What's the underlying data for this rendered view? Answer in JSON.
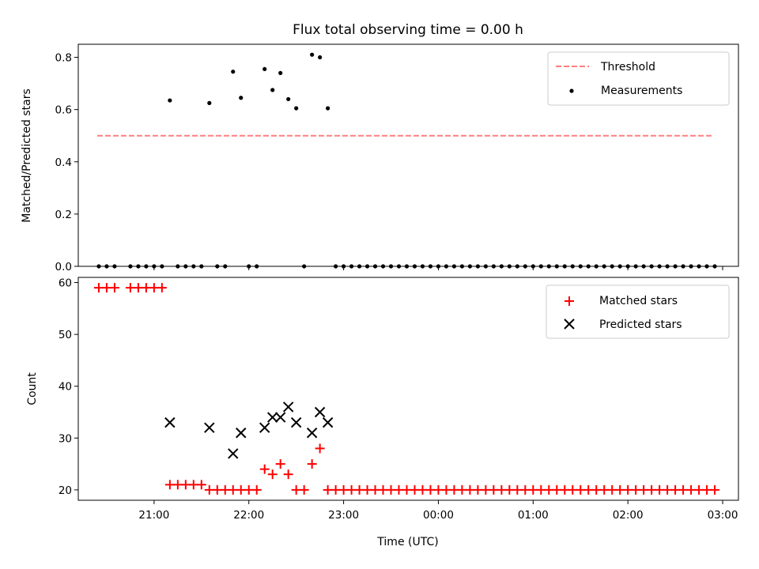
{
  "chart_data": {
    "title": "Flux total observing time = 0.00 h",
    "xlabel": "Time (UTC)",
    "x_ticks": [
      "21:00",
      "22:00",
      "23:00",
      "00:00",
      "01:00",
      "02:00",
      "03:00"
    ],
    "colors": {
      "threshold": "#ff7f7f",
      "measurements": "#000000",
      "matched": "#ff0000",
      "predicted": "#000000"
    },
    "panels": [
      {
        "type": "scatter",
        "ylabel": "Matched/Predicted stars",
        "ylim": [
          0,
          0.85
        ],
        "y_ticks": [
          "0.0",
          "0.2",
          "0.4",
          "0.6",
          "0.8"
        ],
        "legend": {
          "placement": "top-right",
          "entries": [
            "Threshold",
            "Measurements"
          ]
        },
        "series": [
          {
            "name": "Threshold",
            "kind": "dashed-line",
            "points": [
              [
                "20:24",
                0.5
              ],
              [
                "02:54",
                0.5
              ]
            ]
          },
          {
            "name": "Measurements",
            "kind": "points",
            "points": [
              [
                "20:25",
                0
              ],
              [
                "20:30",
                0
              ],
              [
                "20:35",
                0
              ],
              [
                "20:45",
                0
              ],
              [
                "20:50",
                0
              ],
              [
                "20:55",
                0
              ],
              [
                "21:00",
                0
              ],
              [
                "21:05",
                0
              ],
              [
                "21:10",
                0.635
              ],
              [
                "21:15",
                0
              ],
              [
                "21:20",
                0
              ],
              [
                "21:25",
                0
              ],
              [
                "21:30",
                0
              ],
              [
                "21:35",
                0.625
              ],
              [
                "21:40",
                0
              ],
              [
                "21:45",
                0
              ],
              [
                "21:50",
                0.745
              ],
              [
                "21:55",
                0.645
              ],
              [
                "22:00",
                0
              ],
              [
                "22:05",
                0
              ],
              [
                "22:10",
                0.755
              ],
              [
                "22:15",
                0.675
              ],
              [
                "22:20",
                0.74
              ],
              [
                "22:25",
                0.64
              ],
              [
                "22:30",
                0.605
              ],
              [
                "22:35",
                0
              ],
              [
                "22:40",
                0.81
              ],
              [
                "22:45",
                0.8
              ],
              [
                "22:50",
                0.605
              ],
              [
                "22:55",
                0
              ],
              [
                "23:00",
                0
              ],
              [
                "23:05",
                0
              ],
              [
                "23:10",
                0
              ],
              [
                "23:15",
                0
              ],
              [
                "23:20",
                0
              ],
              [
                "23:25",
                0
              ],
              [
                "23:30",
                0
              ],
              [
                "23:35",
                0
              ],
              [
                "23:40",
                0
              ],
              [
                "23:45",
                0
              ],
              [
                "23:50",
                0
              ],
              [
                "23:55",
                0
              ],
              [
                "00:00",
                0
              ],
              [
                "00:05",
                0
              ],
              [
                "00:10",
                0
              ],
              [
                "00:15",
                0
              ],
              [
                "00:20",
                0
              ],
              [
                "00:25",
                0
              ],
              [
                "00:30",
                0
              ],
              [
                "00:35",
                0
              ],
              [
                "00:40",
                0
              ],
              [
                "00:45",
                0
              ],
              [
                "00:50",
                0
              ],
              [
                "00:55",
                0
              ],
              [
                "01:00",
                0
              ],
              [
                "01:05",
                0
              ],
              [
                "01:10",
                0
              ],
              [
                "01:15",
                0
              ],
              [
                "01:20",
                0
              ],
              [
                "01:25",
                0
              ],
              [
                "01:30",
                0
              ],
              [
                "01:35",
                0
              ],
              [
                "01:40",
                0
              ],
              [
                "01:45",
                0
              ],
              [
                "01:50",
                0
              ],
              [
                "01:55",
                0
              ],
              [
                "02:00",
                0
              ],
              [
                "02:05",
                0
              ],
              [
                "02:10",
                0
              ],
              [
                "02:15",
                0
              ],
              [
                "02:20",
                0
              ],
              [
                "02:25",
                0
              ],
              [
                "02:30",
                0
              ],
              [
                "02:35",
                0
              ],
              [
                "02:40",
                0
              ],
              [
                "02:45",
                0
              ],
              [
                "02:50",
                0
              ],
              [
                "02:55",
                0
              ]
            ]
          }
        ]
      },
      {
        "type": "scatter",
        "ylabel": "Count",
        "ylim": [
          18,
          61
        ],
        "y_ticks": [
          "20",
          "30",
          "40",
          "50",
          "60"
        ],
        "legend": {
          "placement": "top-right",
          "entries": [
            "Matched stars",
            "Predicted stars"
          ]
        },
        "series": [
          {
            "name": "Matched stars",
            "kind": "plus",
            "points": [
              [
                "20:25",
                59
              ],
              [
                "20:30",
                59
              ],
              [
                "20:35",
                59
              ],
              [
                "20:45",
                59
              ],
              [
                "20:50",
                59
              ],
              [
                "20:55",
                59
              ],
              [
                "21:00",
                59
              ],
              [
                "21:05",
                59
              ],
              [
                "21:10",
                21
              ],
              [
                "21:15",
                21
              ],
              [
                "21:20",
                21
              ],
              [
                "21:25",
                21
              ],
              [
                "21:30",
                21
              ],
              [
                "21:35",
                20
              ],
              [
                "21:40",
                20
              ],
              [
                "21:45",
                20
              ],
              [
                "21:50",
                20
              ],
              [
                "21:55",
                20
              ],
              [
                "22:00",
                20
              ],
              [
                "22:05",
                20
              ],
              [
                "22:10",
                24
              ],
              [
                "22:15",
                23
              ],
              [
                "22:20",
                25
              ],
              [
                "22:25",
                23
              ],
              [
                "22:30",
                20
              ],
              [
                "22:35",
                20
              ],
              [
                "22:40",
                25
              ],
              [
                "22:45",
                28
              ],
              [
                "22:50",
                20
              ],
              [
                "22:55",
                20
              ],
              [
                "23:00",
                20
              ],
              [
                "23:05",
                20
              ],
              [
                "23:10",
                20
              ],
              [
                "23:15",
                20
              ],
              [
                "23:20",
                20
              ],
              [
                "23:25",
                20
              ],
              [
                "23:30",
                20
              ],
              [
                "23:35",
                20
              ],
              [
                "23:40",
                20
              ],
              [
                "23:45",
                20
              ],
              [
                "23:50",
                20
              ],
              [
                "23:55",
                20
              ],
              [
                "00:00",
                20
              ],
              [
                "00:05",
                20
              ],
              [
                "00:10",
                20
              ],
              [
                "00:15",
                20
              ],
              [
                "00:20",
                20
              ],
              [
                "00:25",
                20
              ],
              [
                "00:30",
                20
              ],
              [
                "00:35",
                20
              ],
              [
                "00:40",
                20
              ],
              [
                "00:45",
                20
              ],
              [
                "00:50",
                20
              ],
              [
                "00:55",
                20
              ],
              [
                "01:00",
                20
              ],
              [
                "01:05",
                20
              ],
              [
                "01:10",
                20
              ],
              [
                "01:15",
                20
              ],
              [
                "01:20",
                20
              ],
              [
                "01:25",
                20
              ],
              [
                "01:30",
                20
              ],
              [
                "01:35",
                20
              ],
              [
                "01:40",
                20
              ],
              [
                "01:45",
                20
              ],
              [
                "01:50",
                20
              ],
              [
                "01:55",
                20
              ],
              [
                "02:00",
                20
              ],
              [
                "02:05",
                20
              ],
              [
                "02:10",
                20
              ],
              [
                "02:15",
                20
              ],
              [
                "02:20",
                20
              ],
              [
                "02:25",
                20
              ],
              [
                "02:30",
                20
              ],
              [
                "02:35",
                20
              ],
              [
                "02:40",
                20
              ],
              [
                "02:45",
                20
              ],
              [
                "02:50",
                20
              ],
              [
                "02:55",
                20
              ]
            ]
          },
          {
            "name": "Predicted stars",
            "kind": "x",
            "points": [
              [
                "21:10",
                33
              ],
              [
                "21:35",
                32
              ],
              [
                "21:50",
                27
              ],
              [
                "21:55",
                31
              ],
              [
                "22:10",
                32
              ],
              [
                "22:15",
                34
              ],
              [
                "22:20",
                34
              ],
              [
                "22:25",
                36
              ],
              [
                "22:30",
                33
              ],
              [
                "22:40",
                31
              ],
              [
                "22:45",
                35
              ],
              [
                "22:50",
                33
              ]
            ]
          }
        ]
      }
    ]
  }
}
